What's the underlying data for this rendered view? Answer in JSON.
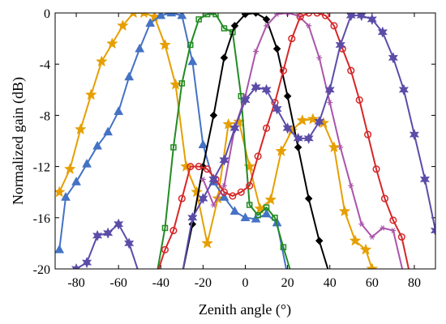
{
  "chart_data": {
    "type": "line",
    "title": "",
    "xlabel": "Zenith angle (°)",
    "ylabel": "Normalized gain (dB)",
    "xlim": [
      -90,
      90
    ],
    "ylim": [
      -20,
      0
    ],
    "xticks": [
      -80,
      -60,
      -40,
      -20,
      0,
      20,
      40,
      60,
      80
    ],
    "yticks": [
      0,
      -4,
      -8,
      -12,
      -16,
      -20
    ],
    "xtick_labels": [
      "-80",
      "-60",
      "-40",
      "-20",
      "0",
      "20",
      "40",
      "60",
      "80"
    ],
    "ytick_labels": [
      "0",
      "-4",
      "-8",
      "-12",
      "-16",
      "-20"
    ],
    "grid": false,
    "legend": "none",
    "series": [
      {
        "color": "#E69F00",
        "marker": "star5",
        "x": [
          -88,
          -83,
          -78,
          -73,
          -68,
          -63,
          -58,
          -53,
          -48,
          -43,
          -38,
          -33,
          -28,
          -23,
          -18,
          -13,
          -8,
          -3,
          2,
          7,
          12,
          17,
          22,
          27,
          32,
          37,
          42,
          47,
          52,
          57,
          60
        ],
        "y": [
          -14,
          -12.2,
          -9.1,
          -6.4,
          -3.8,
          -2.4,
          -1.0,
          0,
          0,
          -0.3,
          -2.5,
          -5.6,
          -12.0,
          -14.0,
          -18.0,
          -14.5,
          -8.7,
          -8.5,
          -12.0,
          -15.3,
          -14.6,
          -10.8,
          -9.2,
          -8.4,
          -8.3,
          -8.6,
          -10.5,
          -15.5,
          -17.8,
          -18.5,
          -20
        ]
      },
      {
        "color": "#4472C4",
        "marker": "triangle",
        "x": [
          -88,
          -85,
          -80,
          -75,
          -70,
          -65,
          -60,
          -55,
          -50,
          -45,
          -40,
          -35,
          -30,
          -25,
          -20,
          -15,
          -10,
          -5,
          0,
          5,
          10,
          15,
          20
        ],
        "y": [
          -18.5,
          -14.4,
          -13.2,
          -11.8,
          -10.4,
          -9.3,
          -7.7,
          -5.0,
          -2.8,
          -0.8,
          -0.2,
          0,
          -0.2,
          -3.8,
          -10.3,
          -13.2,
          -14.4,
          -15.5,
          -16.0,
          -16.1,
          -15.7,
          -16.4,
          -20.5
        ]
      },
      {
        "color": "#228B22",
        "marker": "square",
        "x": [
          -42,
          -38,
          -34,
          -30,
          -26,
          -22,
          -18,
          -14,
          -10,
          -6,
          -2,
          2,
          6,
          10,
          14,
          18,
          22
        ],
        "y": [
          -20.5,
          -16.8,
          -10.5,
          -5.5,
          -2.5,
          -0.5,
          -0.1,
          -0.1,
          -1.2,
          -1.5,
          -6.5,
          -15.0,
          -15.8,
          -15.2,
          -16.0,
          -18.3,
          -20.5
        ]
      },
      {
        "color": "#000000",
        "marker": "diamond",
        "x": [
          -30,
          -25,
          -20,
          -15,
          -10,
          -5,
          0,
          5,
          10,
          15,
          20,
          25,
          30,
          35,
          40
        ],
        "y": [
          -20.5,
          -16.5,
          -12.0,
          -8.0,
          -3.5,
          -1.0,
          -0.1,
          0,
          -0.5,
          -2.8,
          -6.5,
          -10.5,
          -14.5,
          -17.8,
          -20.5
        ]
      },
      {
        "color": "#AA55AA",
        "marker": "asterisk",
        "x": [
          -20,
          -15,
          -10,
          -5,
          0,
          5,
          10,
          15,
          20,
          25,
          30,
          35,
          40,
          45,
          50,
          55,
          60,
          65,
          70,
          75
        ],
        "y": [
          -13.0,
          -15.0,
          -13.5,
          -9.0,
          -6.5,
          -3.0,
          -1.0,
          -0.1,
          0,
          -0.2,
          -1.0,
          -3.5,
          -7.0,
          -10.5,
          -13.5,
          -16.5,
          -17.5,
          -16.8,
          -17.0,
          -20.5
        ]
      },
      {
        "color": "#D62728",
        "marker": "circle",
        "x": [
          -42,
          -38,
          -34,
          -30,
          -26,
          -22,
          -18,
          -14,
          -10,
          -6,
          -2,
          2,
          6,
          10,
          14,
          18,
          22,
          26,
          30,
          34,
          38,
          42,
          46,
          50,
          54,
          58,
          62,
          66,
          70,
          74,
          78
        ],
        "y": [
          -20.5,
          -18.5,
          -17.0,
          -14.5,
          -12.0,
          -12.0,
          -12.2,
          -13.0,
          -14.0,
          -14.3,
          -14.0,
          -13.5,
          -11.2,
          -9.0,
          -7.0,
          -4.5,
          -2.0,
          -0.3,
          0,
          0,
          -0.2,
          -1.0,
          -2.8,
          -4.5,
          -6.8,
          -9.5,
          -12.2,
          -14.5,
          -16.2,
          -17.5,
          -20.5
        ]
      },
      {
        "color": "#5B4CA8",
        "marker": "star6",
        "x": [
          -88,
          -85,
          -80,
          -75,
          -70,
          -65,
          -60,
          -55,
          -50,
          -45,
          -40,
          -35,
          -30,
          -25,
          -20,
          -15,
          -10,
          -5,
          0,
          5,
          10,
          15,
          20,
          25,
          30,
          35,
          40,
          45,
          50,
          55,
          60,
          65,
          70,
          75,
          80,
          85,
          90
        ],
        "y": [
          -20.5,
          -20.5,
          -20.0,
          -19.5,
          -17.4,
          -17.2,
          -16.5,
          -18.0,
          -20.5,
          -20.5,
          -20.5,
          -20.5,
          -20.5,
          -16.0,
          -14.5,
          -13.0,
          -11.5,
          -9.0,
          -6.8,
          -5.8,
          -6.0,
          -7.5,
          -9.0,
          -9.8,
          -9.8,
          -8.5,
          -6.0,
          -2.5,
          -0.2,
          -0.2,
          -0.5,
          -1.5,
          -3.5,
          -6.0,
          -9.5,
          -13.0,
          -17.0
        ]
      }
    ]
  }
}
